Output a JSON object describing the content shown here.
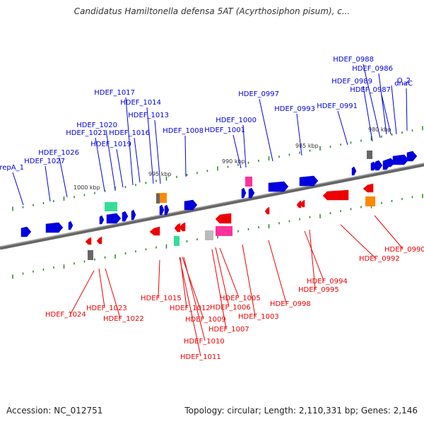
{
  "title": "Candidatus Hamiltonella defensa 5AT (Acyrthosiphon pisum), c...",
  "footer": {
    "accession": "Accession: NC_012751",
    "summary": "Topology: circular; Length: 2,110,331 bp; Genes: 2,146"
  },
  "colors": {
    "forward": "#0000dd",
    "reverse": "#ee0000",
    "backbone": "#808080",
    "tick": "#228822",
    "rrna": "#33dd99",
    "trna": "#ff3399",
    "misc": "#ff8800",
    "pseudo": "#666666"
  },
  "scale_labels": [
    "1000 kbp",
    "995 kbp",
    "990 kbp",
    "985 kbp",
    "980 kbp"
  ],
  "forward_genes": [
    "repA_1",
    "HDEF_1027",
    "HDEF_1026",
    "HDEF_1021",
    "HDEF_1020",
    "HDEF_1019",
    "HDEF_1016",
    "HDEF_1017",
    "HDEF_1014",
    "HDEF_1013",
    "HDEF_1008",
    "HDEF_1001",
    "HDEF_1000",
    "HDEF_0997",
    "HDEF_0993",
    "HDEF_0991",
    "HDEF_0989",
    "HDEF_0988",
    "HDEF_0986",
    "O_2",
    "HDEF_0987",
    "dnaC"
  ],
  "reverse_genes": [
    "HDEF_1024",
    "HDEF_1023",
    "HDEF_1022",
    "HDEF_1015",
    "HDEF_1012",
    "HDEF_1009",
    "HDEF_1010",
    "HDEF_1011",
    "HDEF_1007",
    "HDEF_1006",
    "HDEF_1005",
    "HDEF_1003",
    "HDEF_0998",
    "HDEF_0994",
    "HDEF_0995",
    "HDEF_0992",
    "HDEF_0990"
  ]
}
